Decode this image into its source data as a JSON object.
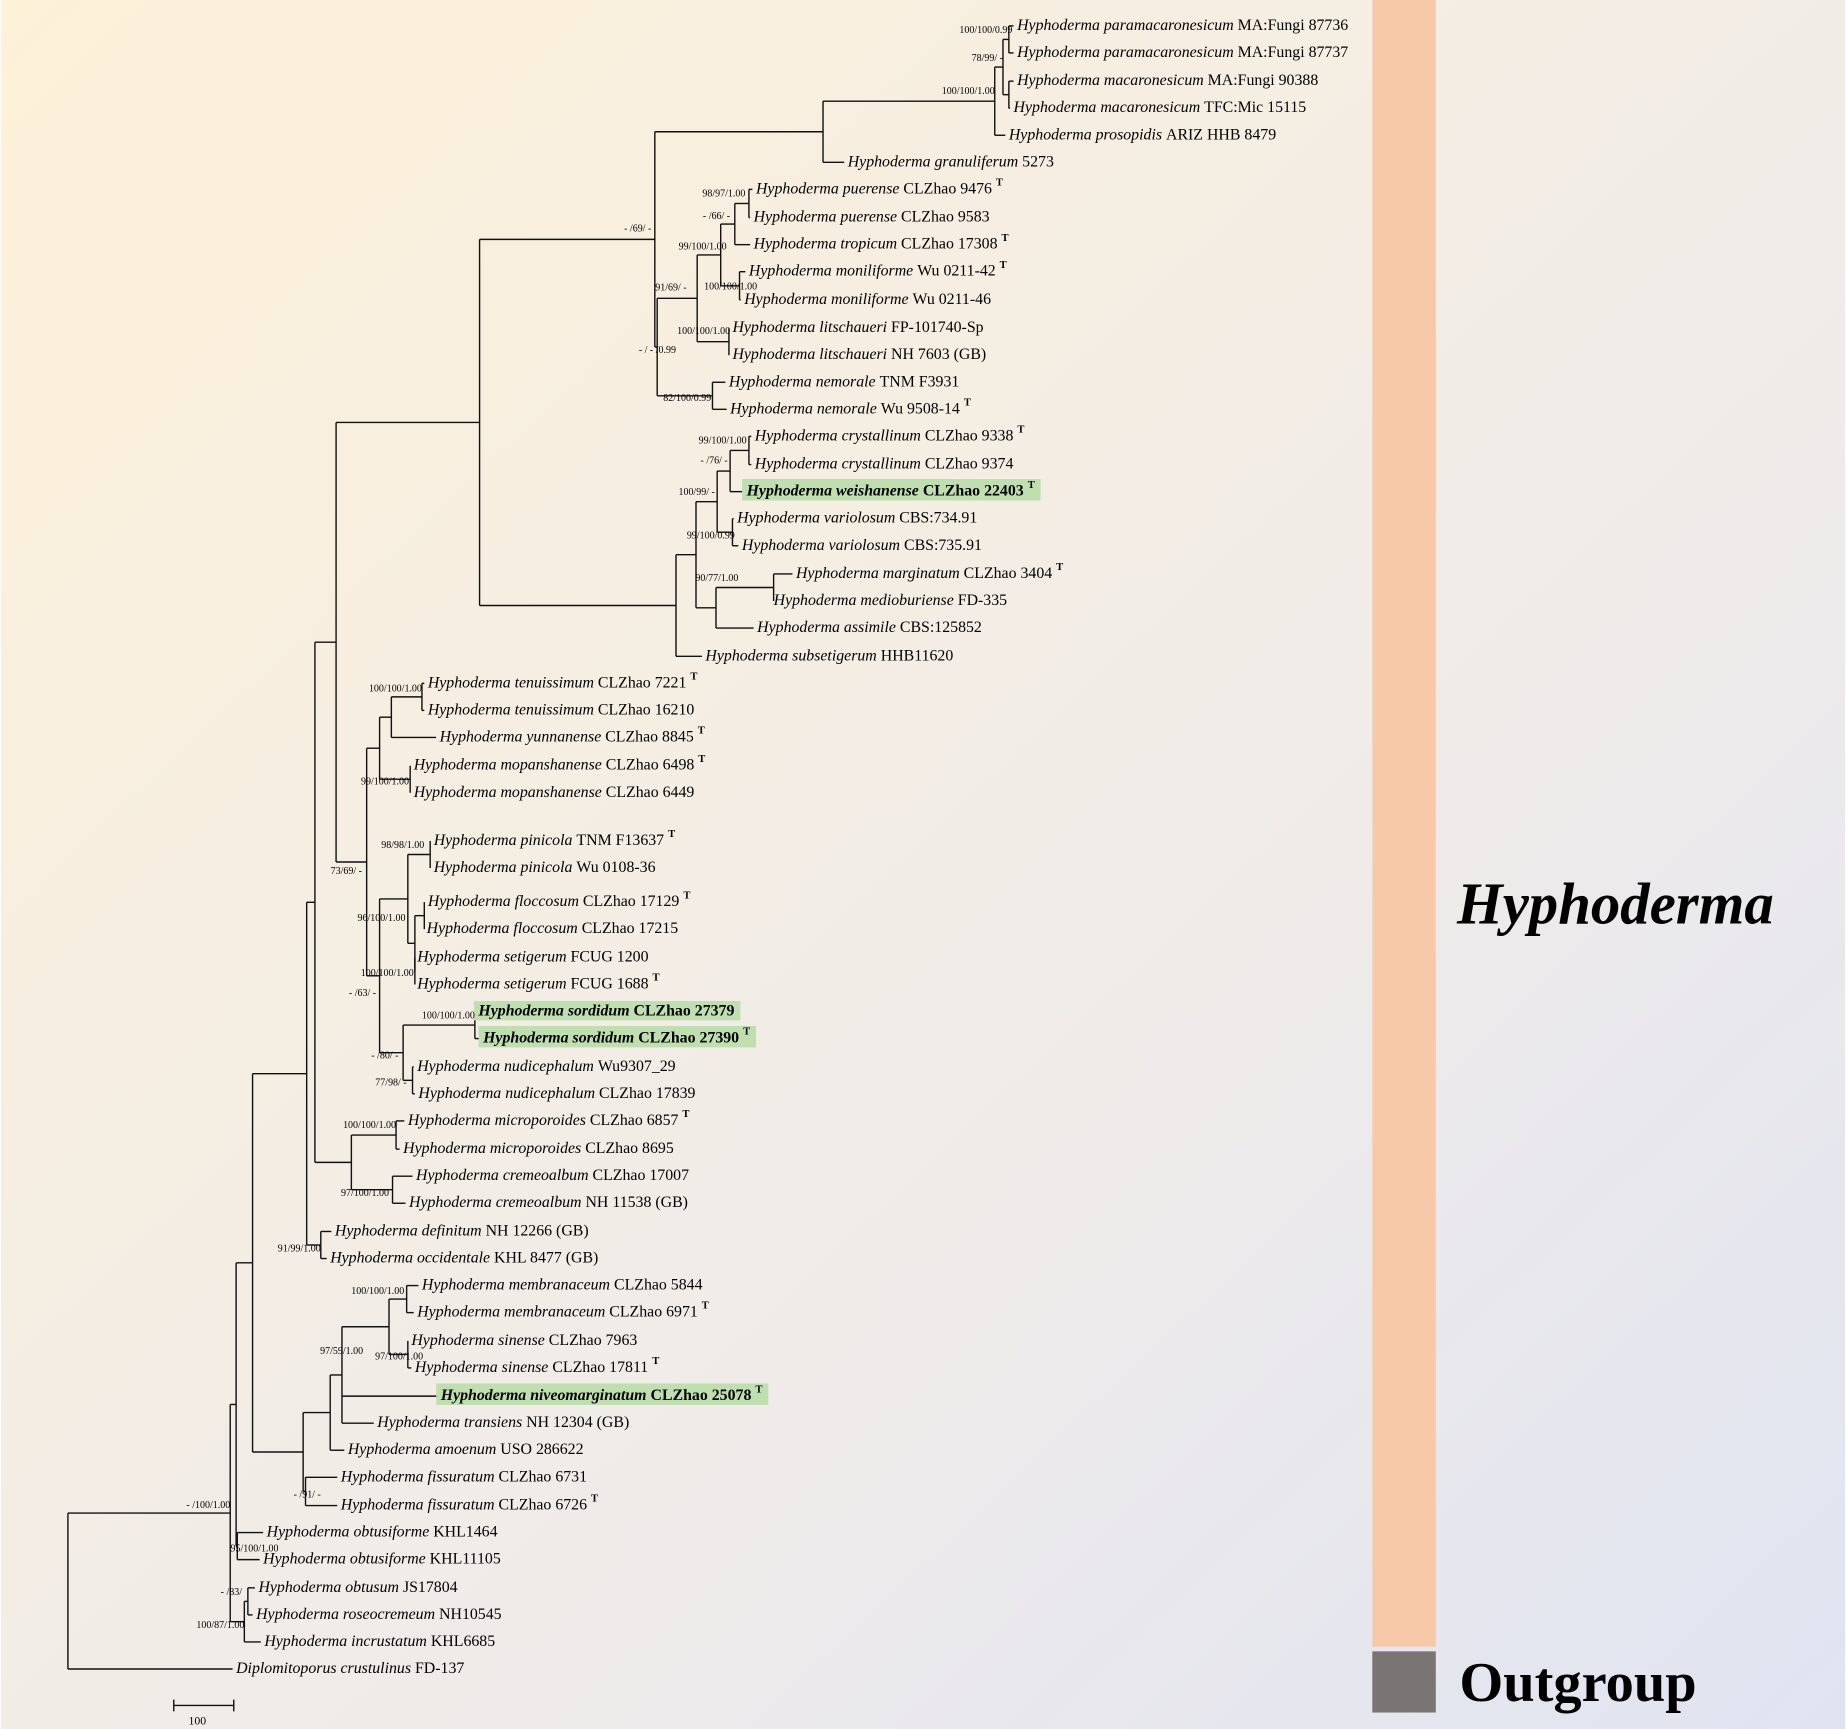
{
  "taxa": [
    {
      "genus": "Hyphoderma",
      "species": "paramacaronesicum",
      "strain": "MA:Fungi 87736"
    },
    {
      "genus": "Hyphoderma",
      "species": "paramacaronesicum",
      "strain": "MA:Fungi 87737"
    },
    {
      "genus": "Hyphoderma",
      "species": "macaronesicum",
      "strain": "MA:Fungi 90388"
    },
    {
      "genus": "Hyphoderma",
      "species": "macaronesicum",
      "strain": "TFC:Mic 15115"
    },
    {
      "genus": "Hyphoderma",
      "species": "prosopidis",
      "strain": "ARIZ HHB 8479"
    },
    {
      "genus": "Hyphoderma",
      "species": "granuliferum",
      "strain": "5273"
    },
    {
      "genus": "Hyphoderma",
      "species": "puerense",
      "strain": "CLZhao 9476",
      "mark": "T"
    },
    {
      "genus": "Hyphoderma",
      "species": "puerense",
      "strain": "CLZhao 9583"
    },
    {
      "genus": "Hyphoderma",
      "species": "tropicum",
      "strain": "CLZhao 17308",
      "mark": "T"
    },
    {
      "genus": "Hyphoderma",
      "species": "moniliforme",
      "strain": "Wu 0211-42",
      "mark": "T"
    },
    {
      "genus": "Hyphoderma",
      "species": "moniliforme",
      "strain": "Wu 0211-46"
    },
    {
      "genus": "Hyphoderma",
      "species": "litschaueri",
      "strain": "FP-101740-Sp"
    },
    {
      "genus": "Hyphoderma",
      "species": "litschaueri",
      "strain": "NH 7603 (GB)"
    },
    {
      "genus": "Hyphoderma",
      "species": "nemorale",
      "strain": "TNM F3931"
    },
    {
      "genus": "Hyphoderma",
      "species": "nemorale",
      "strain": "Wu 9508-14",
      "mark": "T"
    },
    {
      "genus": "Hyphoderma",
      "species": "crystallinum",
      "strain": "CLZhao 9338",
      "mark": "T"
    },
    {
      "genus": "Hyphoderma",
      "species": "crystallinum",
      "strain": "CLZhao 9374"
    },
    {
      "genus": "Hyphoderma",
      "species": "weishanense",
      "strain": "CLZhao 22403",
      "mark": "T",
      "highlight": true
    },
    {
      "genus": "Hyphoderma",
      "species": "variolosum",
      "strain": "CBS:734.91"
    },
    {
      "genus": "Hyphoderma",
      "species": "variolosum",
      "strain": "CBS:735.91"
    },
    {
      "genus": "Hyphoderma",
      "species": "marginatum",
      "strain": "CLZhao 3404",
      "mark": "T"
    },
    {
      "genus": "Hyphoderma",
      "species": "medioburiense",
      "strain": "FD-335"
    },
    {
      "genus": "Hyphoderma",
      "species": "assimile",
      "strain": "CBS:125852"
    },
    {
      "genus": "Hyphoderma",
      "species": "subsetigerum",
      "strain": "HHB11620"
    },
    {
      "genus": "Hyphoderma",
      "species": "tenuissimum",
      "strain": "CLZhao 7221",
      "mark": "T"
    },
    {
      "genus": "Hyphoderma",
      "species": "tenuissimum",
      "strain": "CLZhao 16210"
    },
    {
      "genus": "Hyphoderma",
      "species": "yunnanense",
      "strain": "CLZhao 8845",
      "mark": "T"
    },
    {
      "genus": "Hyphoderma",
      "species": "mopanshanense",
      "strain": "CLZhao 6498",
      "mark": "T"
    },
    {
      "genus": "Hyphoderma",
      "species": "mopanshanense",
      "strain": "CLZhao 6449"
    },
    {
      "genus": "Hyphoderma",
      "species": "pinicola",
      "strain": "TNM F13637",
      "mark": "T"
    },
    {
      "genus": "Hyphoderma",
      "species": "pinicola",
      "strain": "Wu 0108-36"
    },
    {
      "genus": "Hyphoderma",
      "species": "floccosum",
      "strain": "CLZhao 17129",
      "mark": "T"
    },
    {
      "genus": "Hyphoderma",
      "species": "floccosum",
      "strain": "CLZhao 17215"
    },
    {
      "genus": "Hyphoderma",
      "species": "setigerum",
      "strain": "FCUG 1200"
    },
    {
      "genus": "Hyphoderma",
      "species": "setigerum",
      "strain": "FCUG 1688",
      "mark": "T"
    },
    {
      "genus": "Hyphoderma",
      "species": "sordidum",
      "strain": "CLZhao 27379",
      "highlight": true
    },
    {
      "genus": "Hyphoderma",
      "species": "sordidum",
      "strain": "CLZhao 27390",
      "mark": "T",
      "highlight": true
    },
    {
      "genus": "Hyphoderma",
      "species": "nudicephalum",
      "strain": "Wu9307_29"
    },
    {
      "genus": "Hyphoderma",
      "species": "nudicephalum",
      "strain": "CLZhao 17839"
    },
    {
      "genus": "Hyphoderma",
      "species": "microporoides",
      "strain": "CLZhao 6857",
      "mark": "T"
    },
    {
      "genus": "Hyphoderma",
      "species": "microporoides",
      "strain": "CLZhao 8695"
    },
    {
      "genus": "Hyphoderma",
      "species": "cremeoalbum",
      "strain": "CLZhao 17007"
    },
    {
      "genus": "Hyphoderma",
      "species": "cremeoalbum",
      "strain": "NH 11538 (GB)"
    },
    {
      "genus": "Hyphoderma",
      "species": "definitum",
      "strain": "NH 12266 (GB)"
    },
    {
      "genus": "Hyphoderma",
      "species": "occidentale",
      "strain": "KHL 8477 (GB)"
    },
    {
      "genus": "Hyphoderma",
      "species": "membranaceum",
      "strain": "CLZhao 5844"
    },
    {
      "genus": "Hyphoderma",
      "species": "membranaceum",
      "strain": "CLZhao 6971",
      "mark": "T"
    },
    {
      "genus": "Hyphoderma",
      "species": "sinense",
      "strain": "CLZhao 7963"
    },
    {
      "genus": "Hyphoderma",
      "species": "sinense",
      "strain": "CLZhao 17811",
      "mark": "T"
    },
    {
      "genus": "Hyphoderma",
      "species": "niveomarginatum",
      "strain": "CLZhao 25078",
      "mark": "T",
      "highlight": true
    },
    {
      "genus": "Hyphoderma",
      "species": "transiens",
      "strain": "NH 12304 (GB)"
    },
    {
      "genus": "Hyphoderma",
      "species": "amoenum",
      "strain": "USO 286622"
    },
    {
      "genus": "Hyphoderma",
      "species": "fissuratum",
      "strain": "CLZhao 6731"
    },
    {
      "genus": "Hyphoderma",
      "species": "fissuratum",
      "strain": "CLZhao 6726",
      "mark": "T"
    },
    {
      "genus": "Hyphoderma",
      "species": "obtusiforme",
      "strain": "KHL1464"
    },
    {
      "genus": "Hyphoderma",
      "species": "obtusiforme",
      "strain": "KHL11105"
    },
    {
      "genus": "Hyphoderma",
      "species": "obtusum",
      "strain": "JS17804"
    },
    {
      "genus": "Hyphoderma",
      "species": "roseocremeum",
      "strain": "NH10545"
    },
    {
      "genus": "Hyphoderma",
      "species": "incrustatum",
      "strain": "KHL6685"
    },
    {
      "genus": "Diplomitoporus",
      "species": "crustulinus",
      "strain": "FD-137"
    }
  ],
  "supports": [
    "100/100/0.99",
    "78/99/ -",
    "100/100/1.00",
    "- /69/ -",
    "98/97/1.00",
    "- /66/ -",
    "99/100/1.00",
    "100/100/1.00",
    "91/69/ -",
    "100/100/1.00",
    "- / - /0.99",
    "82/100/0.99",
    "99/100/1.00",
    "- /76/ -",
    "100/99/ -",
    "99/100/0.99",
    "90/77/1.00",
    "100/100/1.00",
    "99/100/1.00",
    "98/98/1.00",
    "73/69/ -",
    "96/100/1.00",
    "100/100/1.00",
    "- /63/ -",
    "100/100/1.00",
    "- /80/ -",
    "77/98/ -",
    "100/100/1.00",
    "97/100/1.00",
    "91/99/1.00",
    "100/100/1.00",
    "97/59/1.00",
    "97/100/1.00",
    "- /91/ -",
    "- /100/1.00",
    "95/100/1.00",
    "- /83/",
    "100/87/1.00"
  ],
  "clades": [
    "Hyphoderma",
    "Outgroup"
  ],
  "scale_bar": "100"
}
